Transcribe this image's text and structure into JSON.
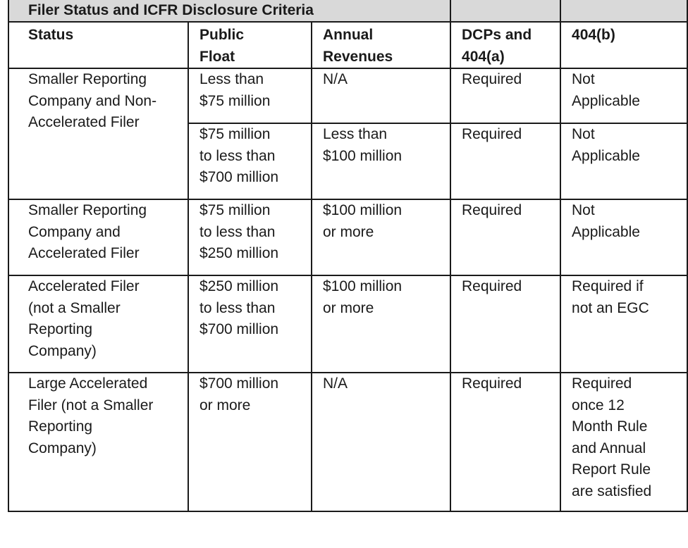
{
  "title": "Filer Status and ICFR Disclosure Criteria",
  "headers": {
    "status": [
      "Status"
    ],
    "public_float": [
      "Public",
      "Float"
    ],
    "annual_revenues": [
      "Annual",
      "Revenues"
    ],
    "dcps": [
      "DCPs and",
      "404(a)"
    ],
    "b404": [
      "404(b)"
    ]
  },
  "rows": [
    {
      "status": [
        "Smaller Reporting",
        "Company and Non-",
        "Accelerated Filer"
      ],
      "public_float": [
        "Less than",
        "$75 million"
      ],
      "annual_revenues": [
        "N/A"
      ],
      "dcps": [
        "Required"
      ],
      "b404": [
        "Not",
        "Applicable"
      ]
    },
    {
      "public_float": [
        "$75 million",
        "to less than",
        "$700 million"
      ],
      "annual_revenues": [
        "Less than",
        "$100 million"
      ],
      "dcps": [
        "Required"
      ],
      "b404": [
        "Not",
        "Applicable"
      ]
    },
    {
      "status": [
        "Smaller Reporting",
        "Company and",
        "Accelerated Filer"
      ],
      "public_float": [
        "$75 million",
        "to less than",
        "$250 million"
      ],
      "annual_revenues": [
        "$100 million",
        "or more"
      ],
      "dcps": [
        "Required"
      ],
      "b404": [
        "Not",
        "Applicable"
      ]
    },
    {
      "status": [
        "Accelerated Filer",
        "(not a Smaller",
        "Reporting",
        "Company)"
      ],
      "public_float": [
        "$250 million",
        "to less than",
        "$700 million"
      ],
      "annual_revenues": [
        "$100 million",
        "or more"
      ],
      "dcps": [
        "Required"
      ],
      "b404": [
        "Required if",
        "not an EGC"
      ]
    },
    {
      "status": [
        "Large Accelerated",
        "Filer (not a Smaller",
        "Reporting",
        "Company)"
      ],
      "public_float": [
        "$700 million",
        "or more"
      ],
      "annual_revenues": [
        "N/A"
      ],
      "dcps": [
        "Required"
      ],
      "b404": [
        "Required",
        "once 12",
        "Month Rule",
        "and Annual",
        "Report Rule",
        "are satisfied"
      ]
    }
  ]
}
